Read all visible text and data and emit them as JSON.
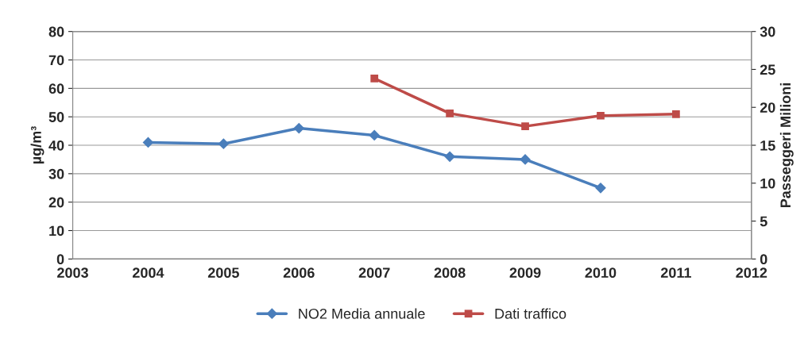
{
  "chart_data": {
    "type": "line",
    "ylabel": "µg/m³",
    "y2label": "Passeggeri Milioni",
    "xlim": [
      2003,
      2012
    ],
    "xticks": [
      2003,
      2004,
      2005,
      2006,
      2007,
      2008,
      2009,
      2010,
      2011,
      2012
    ],
    "ylim": [
      0,
      80
    ],
    "yticks": [
      0,
      10,
      20,
      30,
      40,
      50,
      60,
      70,
      80
    ],
    "y2lim": [
      0,
      30
    ],
    "y2ticks": [
      0,
      5,
      10,
      15,
      20,
      25,
      30
    ],
    "grid": "y",
    "legend": "bottom",
    "series": [
      {
        "name": "NO2 Media annuale",
        "color": "#4a7ebb",
        "marker": "diamond",
        "x": [
          2004,
          2005,
          2006,
          2007,
          2008,
          2009,
          2010
        ],
        "values": [
          41,
          40.5,
          46,
          43.5,
          36,
          35,
          25
        ]
      },
      {
        "name": "Dati traffico",
        "color": "#be4b48",
        "marker": "square",
        "axis": "y2",
        "x": [
          2007,
          2008,
          2009,
          2010,
          2011
        ],
        "values": [
          23.8,
          19.2,
          17.5,
          18.9,
          19.1
        ]
      }
    ]
  }
}
